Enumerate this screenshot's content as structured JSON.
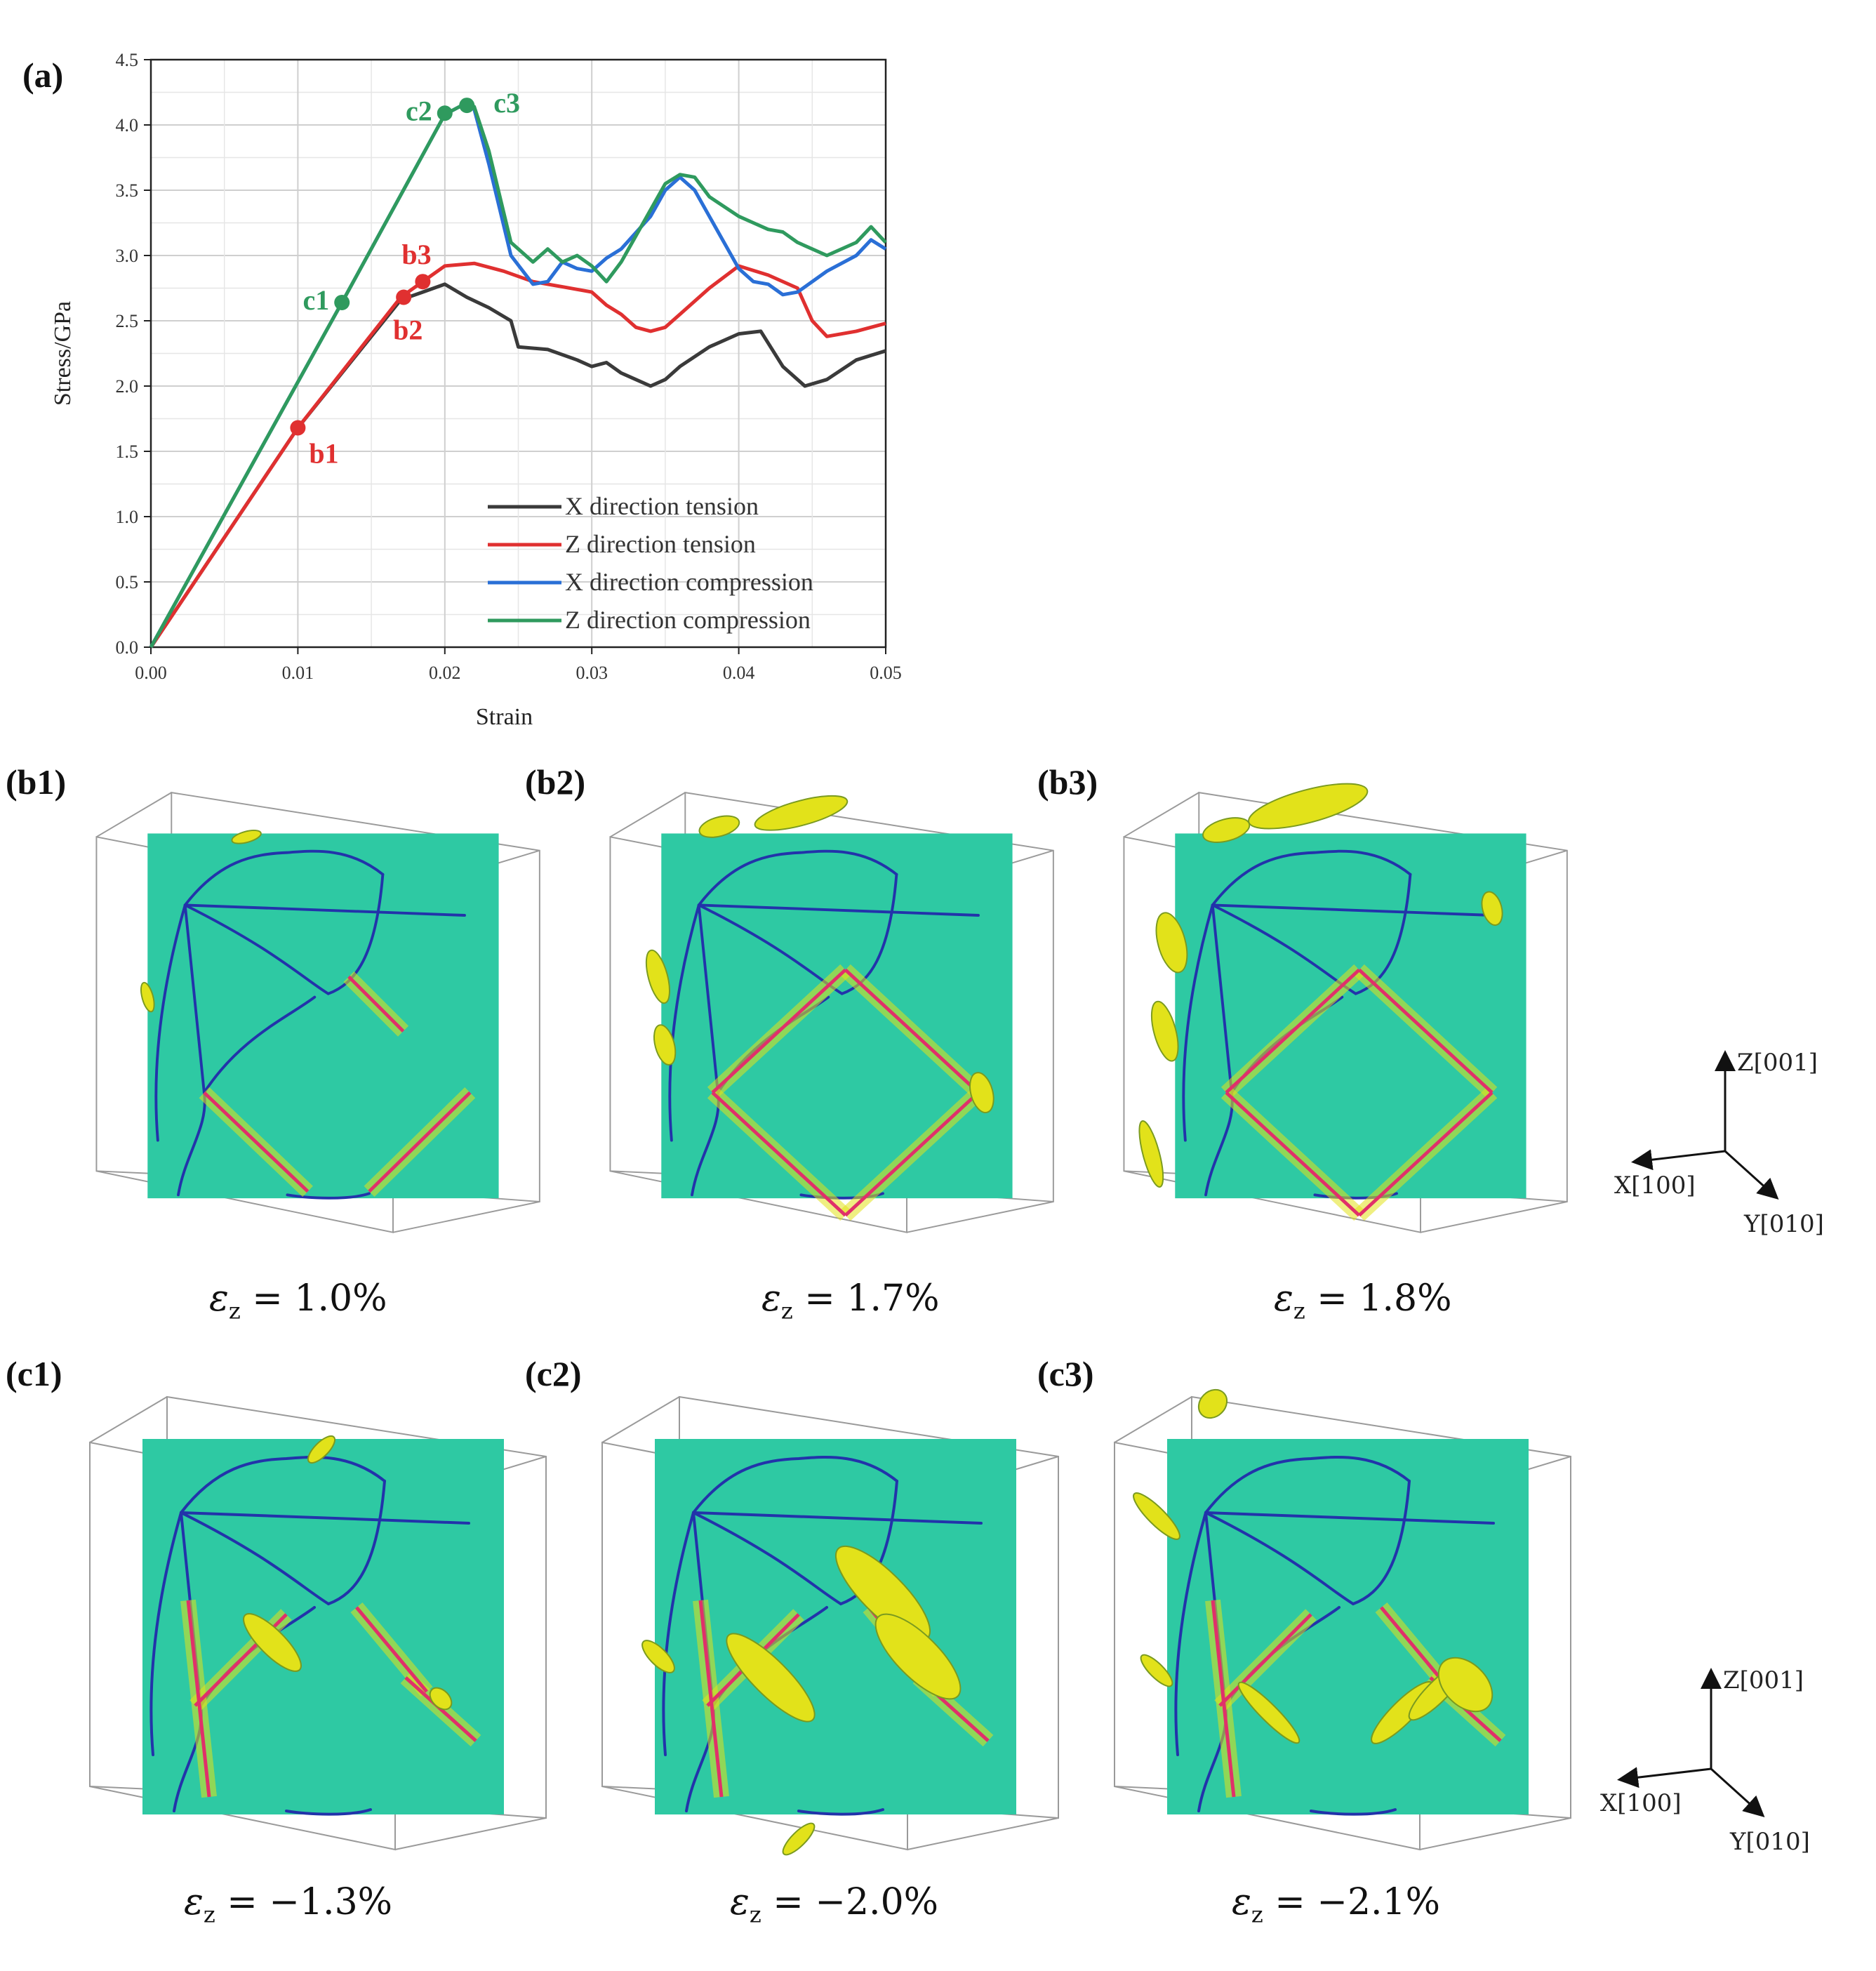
{
  "panel_labels": {
    "a": "(a)",
    "b1": "(b1)",
    "b2": "(b2)",
    "b3": "(b3)",
    "c1": "(c1)",
    "c2": "(c2)",
    "c3": "(c3)"
  },
  "chart_data": {
    "type": "line",
    "title": "",
    "xlabel": "Strain",
    "ylabel": "Stress/GPa",
    "xlim": [
      0,
      0.05
    ],
    "ylim": [
      0,
      4.5
    ],
    "xticks": [
      "0.00",
      "0.01",
      "0.02",
      "0.03",
      "0.04",
      "0.05"
    ],
    "yticks": [
      "0.0",
      "0.5",
      "1.0",
      "1.5",
      "2.0",
      "2.5",
      "3.0",
      "3.5",
      "4.0",
      "4.5"
    ],
    "grid": true,
    "legend_position": "bottom-right",
    "series": [
      {
        "name": "X direction tension",
        "color": "#3a3a3a",
        "x": [
          0,
          0.01,
          0.017,
          0.0185,
          0.02,
          0.0215,
          0.023,
          0.0245,
          0.025,
          0.027,
          0.029,
          0.03,
          0.031,
          0.032,
          0.033,
          0.034,
          0.035,
          0.036,
          0.038,
          0.04,
          0.0415,
          0.043,
          0.0445,
          0.046,
          0.048,
          0.05
        ],
        "y": [
          0,
          1.68,
          2.66,
          2.72,
          2.78,
          2.68,
          2.6,
          2.5,
          2.3,
          2.28,
          2.2,
          2.15,
          2.18,
          2.1,
          2.05,
          2.0,
          2.05,
          2.15,
          2.3,
          2.4,
          2.42,
          2.15,
          2.0,
          2.05,
          2.2,
          2.27
        ]
      },
      {
        "name": "Z direction tension",
        "color": "#e03030",
        "x": [
          0,
          0.01,
          0.017,
          0.0185,
          0.02,
          0.022,
          0.024,
          0.026,
          0.028,
          0.03,
          0.031,
          0.032,
          0.033,
          0.034,
          0.035,
          0.036,
          0.038,
          0.04,
          0.042,
          0.044,
          0.045,
          0.046,
          0.048,
          0.05
        ],
        "y": [
          0,
          1.68,
          2.68,
          2.8,
          2.92,
          2.94,
          2.88,
          2.8,
          2.76,
          2.72,
          2.62,
          2.55,
          2.45,
          2.42,
          2.45,
          2.55,
          2.75,
          2.92,
          2.85,
          2.75,
          2.5,
          2.38,
          2.42,
          2.48
        ]
      },
      {
        "name": "X direction compression",
        "color": "#2a6fd6",
        "x": [
          0,
          0.013,
          0.02,
          0.0215,
          0.022,
          0.023,
          0.0245,
          0.026,
          0.027,
          0.028,
          0.029,
          0.03,
          0.031,
          0.032,
          0.034,
          0.035,
          0.036,
          0.037,
          0.038,
          0.04,
          0.041,
          0.042,
          0.043,
          0.044,
          0.046,
          0.048,
          0.049,
          0.05
        ],
        "y": [
          0,
          2.64,
          4.08,
          4.17,
          4.12,
          3.7,
          3.0,
          2.78,
          2.8,
          2.95,
          2.9,
          2.88,
          2.98,
          3.05,
          3.3,
          3.5,
          3.6,
          3.5,
          3.3,
          2.9,
          2.8,
          2.78,
          2.7,
          2.72,
          2.88,
          3.0,
          3.12,
          3.05
        ]
      },
      {
        "name": "Z direction compression",
        "color": "#2f9a5e",
        "x": [
          0,
          0.013,
          0.02,
          0.0215,
          0.022,
          0.023,
          0.0245,
          0.026,
          0.027,
          0.028,
          0.029,
          0.03,
          0.031,
          0.032,
          0.034,
          0.035,
          0.036,
          0.037,
          0.038,
          0.04,
          0.041,
          0.042,
          0.043,
          0.044,
          0.046,
          0.048,
          0.049,
          0.05
        ],
        "y": [
          0,
          2.64,
          4.08,
          4.17,
          4.14,
          3.8,
          3.1,
          2.95,
          3.05,
          2.95,
          3.0,
          2.92,
          2.8,
          2.95,
          3.35,
          3.55,
          3.62,
          3.6,
          3.45,
          3.3,
          3.25,
          3.2,
          3.18,
          3.1,
          3.0,
          3.1,
          3.22,
          3.1
        ]
      }
    ],
    "annotations": [
      {
        "text": "b1",
        "x": 0.01,
        "y": 1.68,
        "color": "#e03030",
        "label_pos": "below-right"
      },
      {
        "text": "b2",
        "x": 0.0172,
        "y": 2.68,
        "color": "#e03030",
        "label_pos": "below-right"
      },
      {
        "text": "b3",
        "x": 0.0185,
        "y": 2.8,
        "color": "#e03030",
        "label_pos": "above-right"
      },
      {
        "text": "c1",
        "x": 0.013,
        "y": 2.64,
        "color": "#2f9a5e",
        "label_pos": "left"
      },
      {
        "text": "c2",
        "x": 0.02,
        "y": 4.09,
        "color": "#2f9a5e",
        "label_pos": "left"
      },
      {
        "text": "c3",
        "x": 0.0215,
        "y": 4.15,
        "color": "#2f9a5e",
        "label_pos": "right"
      }
    ]
  },
  "strain_labels": {
    "b1": "ε",
    "b1_sub": "z",
    "b1_val": " = 1.0%",
    "b2": "ε",
    "b2_sub": "z",
    "b2_val": " = 1.7%",
    "b3": "ε",
    "b3_sub": "z",
    "b3_val": " = 1.8%",
    "c1": "ε",
    "c1_sub": "z",
    "c1_val": " = −1.3%",
    "c2": "ε",
    "c2_sub": "z",
    "c2_val": " = −2.0%",
    "c3": "ε",
    "c3_sub": "z",
    "c3_val": " = −2.1%"
  },
  "axes_triad": {
    "z": "Z[001]",
    "x": "X[100]",
    "y": "Y[010]"
  },
  "colors": {
    "cube_face": "#2ec9a3",
    "grain_boundary": "#2233aa",
    "twin": "#e0306a",
    "defect": "#e2e21a"
  }
}
